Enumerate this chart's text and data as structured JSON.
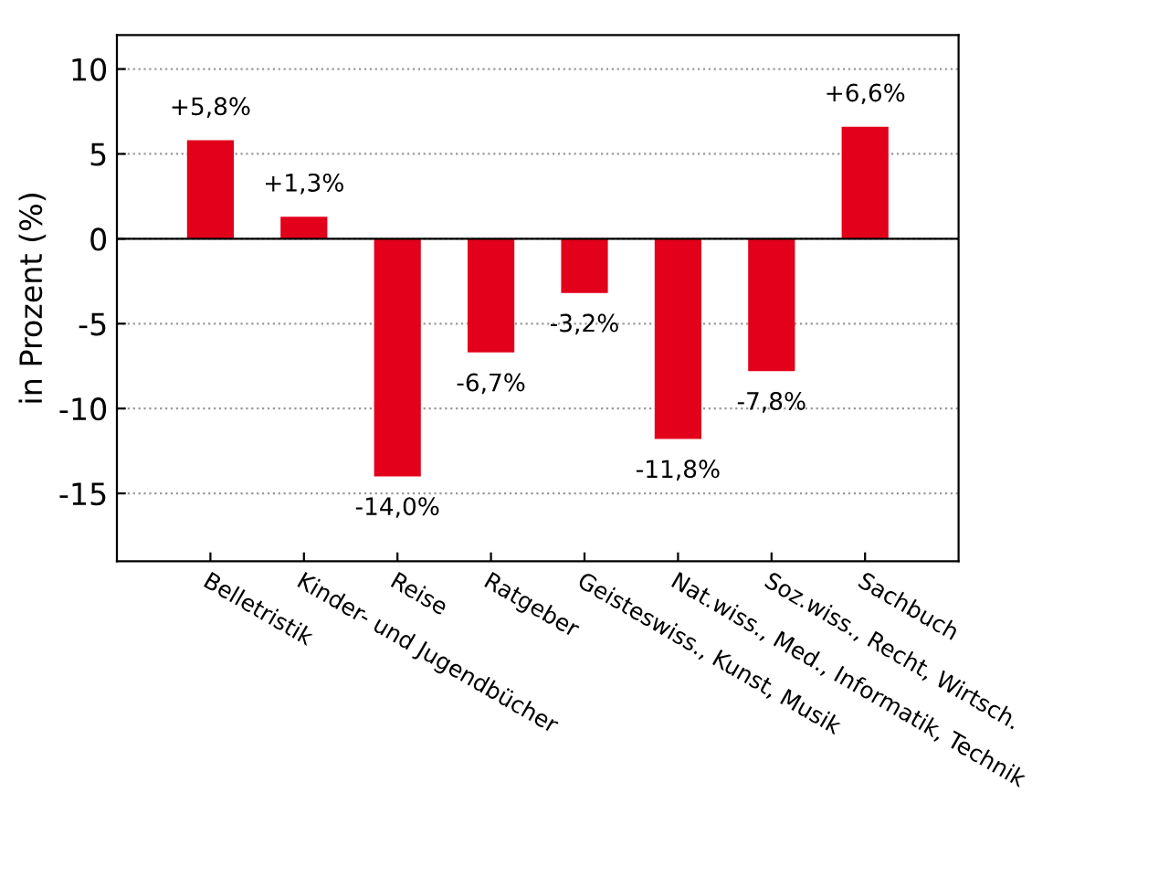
{
  "chart_data": {
    "type": "bar",
    "ylabel": "in Prozent (%)",
    "categories": [
      "Belletristik",
      "Kinder- und Jugendbücher",
      "Reise",
      "Ratgeber",
      "Geisteswiss., Kunst, Musik",
      "Nat.wiss., Med., Informatik, Technik",
      "Soz.wiss., Recht, Wirtsch.",
      "Sachbuch"
    ],
    "values": [
      5.8,
      1.3,
      -14.0,
      -6.7,
      -3.2,
      -11.8,
      -7.8,
      6.6
    ],
    "value_labels": [
      "+5,8%",
      "+1,3%",
      "-14,0%",
      "-6,7%",
      "-3,2%",
      "-11,8%",
      "-7,8%",
      "+6,6%"
    ],
    "color": "#e2001a",
    "ylim": [
      -19,
      12
    ],
    "yticks": [
      10,
      5,
      0,
      {
        "value": -5,
        "label": "-5"
      },
      {
        "value": -10,
        "label": "-10"
      },
      {
        "value": -15,
        "label": "-15"
      }
    ],
    "ref_lines": [
      {
        "axis": "y",
        "value": 0,
        "color": "#000000"
      }
    ],
    "grid": "y"
  }
}
